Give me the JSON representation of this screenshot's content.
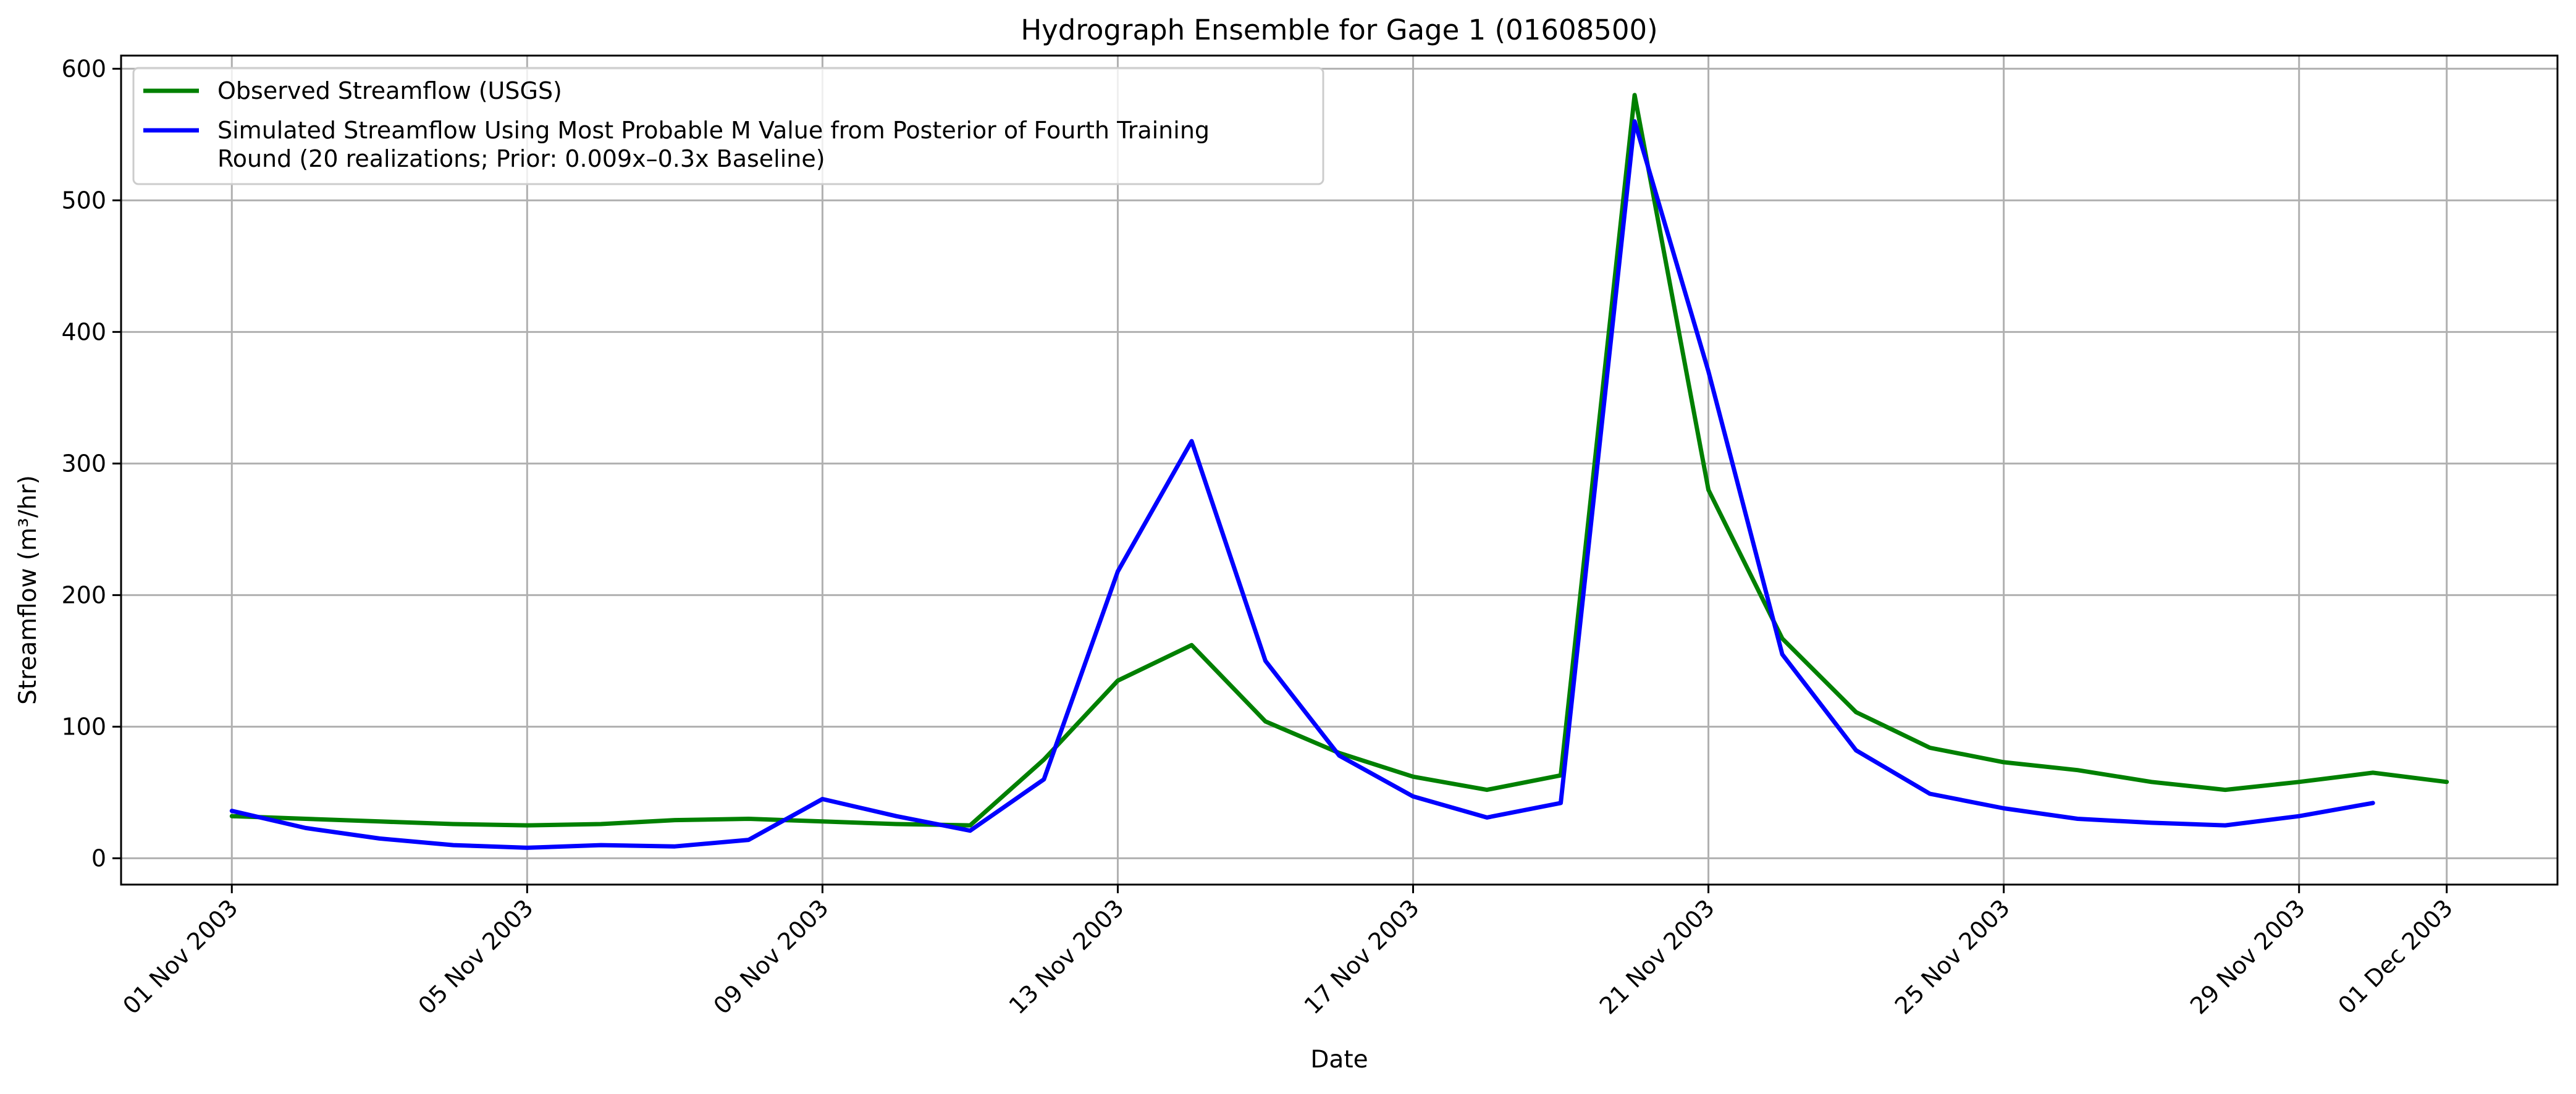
{
  "chart_data": {
    "type": "line",
    "title": "Hydrograph Ensemble for Gage 1 (01608500)",
    "xlabel": "Date",
    "ylabel": "Streamflow (m³/hr)",
    "xlim": [
      "2003-10-30T12:00",
      "2003-12-02T12:00"
    ],
    "ylim": [
      -20,
      610
    ],
    "grid": true,
    "legend_position": "upper-left",
    "x_ticks": [
      {
        "date": "2003-11-01",
        "label": "01 Nov 2003"
      },
      {
        "date": "2003-11-05",
        "label": "05 Nov 2003"
      },
      {
        "date": "2003-11-09",
        "label": "09 Nov 2003"
      },
      {
        "date": "2003-11-13",
        "label": "13 Nov 2003"
      },
      {
        "date": "2003-11-17",
        "label": "17 Nov 2003"
      },
      {
        "date": "2003-11-21",
        "label": "21 Nov 2003"
      },
      {
        "date": "2003-11-25",
        "label": "25 Nov 2003"
      },
      {
        "date": "2003-11-29",
        "label": "29 Nov 2003"
      },
      {
        "date": "2003-12-01",
        "label": "01 Dec 2003"
      }
    ],
    "y_ticks": [
      0,
      100,
      200,
      300,
      400,
      500,
      600
    ],
    "series": [
      {
        "name": "Observed Streamflow (USGS)",
        "color": "#008000",
        "x": [
          "2003-11-01",
          "2003-11-02",
          "2003-11-03",
          "2003-11-04",
          "2003-11-05",
          "2003-11-06",
          "2003-11-07",
          "2003-11-08",
          "2003-11-09",
          "2003-11-10",
          "2003-11-11",
          "2003-11-12",
          "2003-11-13",
          "2003-11-14",
          "2003-11-15",
          "2003-11-16",
          "2003-11-17",
          "2003-11-18",
          "2003-11-19",
          "2003-11-20",
          "2003-11-21",
          "2003-11-22",
          "2003-11-23",
          "2003-11-24",
          "2003-11-25",
          "2003-11-26",
          "2003-11-27",
          "2003-11-28",
          "2003-11-29",
          "2003-11-30",
          "2003-12-01"
        ],
        "y": [
          32,
          30,
          28,
          26,
          25,
          26,
          29,
          30,
          28,
          26,
          25,
          75,
          135,
          162,
          104,
          80,
          62,
          52,
          63,
          580,
          280,
          167,
          111,
          84,
          73,
          67,
          58,
          52,
          58,
          65,
          58
        ]
      },
      {
        "name": "Simulated Streamflow Using Most Probable M Value from Posterior of Fourth Training Round (20 realizations; Prior: 0.009x–0.3x Baseline)",
        "color": "#0000ff",
        "x": [
          "2003-11-01",
          "2003-11-02",
          "2003-11-03",
          "2003-11-04",
          "2003-11-05",
          "2003-11-06",
          "2003-11-07",
          "2003-11-08",
          "2003-11-09",
          "2003-11-10",
          "2003-11-11",
          "2003-11-12",
          "2003-11-13",
          "2003-11-14",
          "2003-11-15",
          "2003-11-16",
          "2003-11-17",
          "2003-11-18",
          "2003-11-19",
          "2003-11-20",
          "2003-11-21",
          "2003-11-22",
          "2003-11-23",
          "2003-11-24",
          "2003-11-25",
          "2003-11-26",
          "2003-11-27",
          "2003-11-28",
          "2003-11-29",
          "2003-11-30"
        ],
        "y": [
          36,
          23,
          15,
          10,
          8,
          10,
          9,
          14,
          45,
          32,
          21,
          60,
          218,
          317,
          150,
          78,
          47,
          31,
          42,
          560,
          370,
          155,
          82,
          49,
          38,
          30,
          27,
          25,
          32,
          42
        ]
      }
    ],
    "legend_lines": [
      [
        "Observed Streamflow (USGS)"
      ],
      [
        "Simulated Streamflow Using Most Probable M Value from Posterior of Fourth Training",
        "Round (20 realizations; Prior: 0.009x–0.3x Baseline)"
      ]
    ]
  }
}
